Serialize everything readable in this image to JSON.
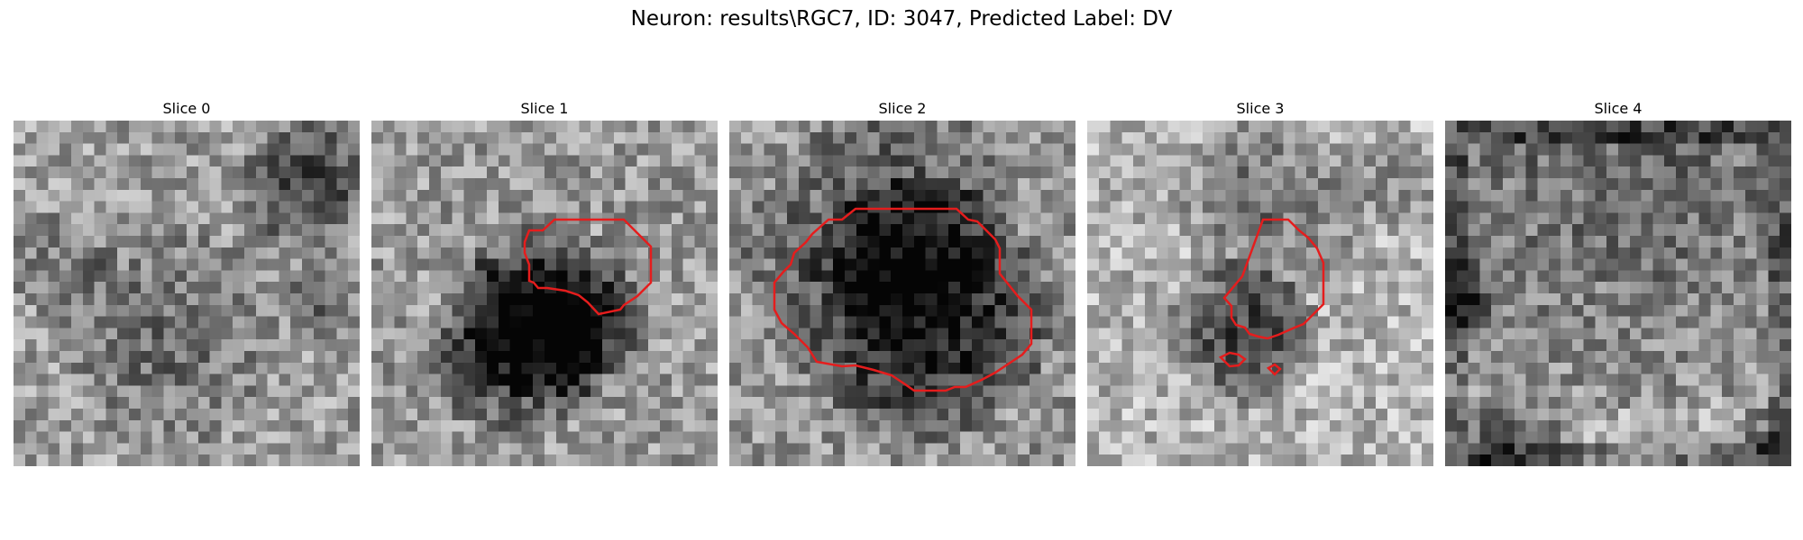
{
  "figure": {
    "title": "Neuron: results\\RGC7, ID: 3047, Predicted Label: DV"
  },
  "slices": [
    {
      "label": "Slice 0",
      "contours": []
    },
    {
      "label": "Slice 1",
      "contours": [
        "roi"
      ]
    },
    {
      "label": "Slice 2",
      "contours": [
        "roi"
      ]
    },
    {
      "label": "Slice 3",
      "contours": [
        "roi",
        "small-1",
        "small-2"
      ]
    },
    {
      "label": "Slice 4",
      "contours": []
    }
  ],
  "colors": {
    "contour": "#e51d1d",
    "colormap": "gray"
  }
}
